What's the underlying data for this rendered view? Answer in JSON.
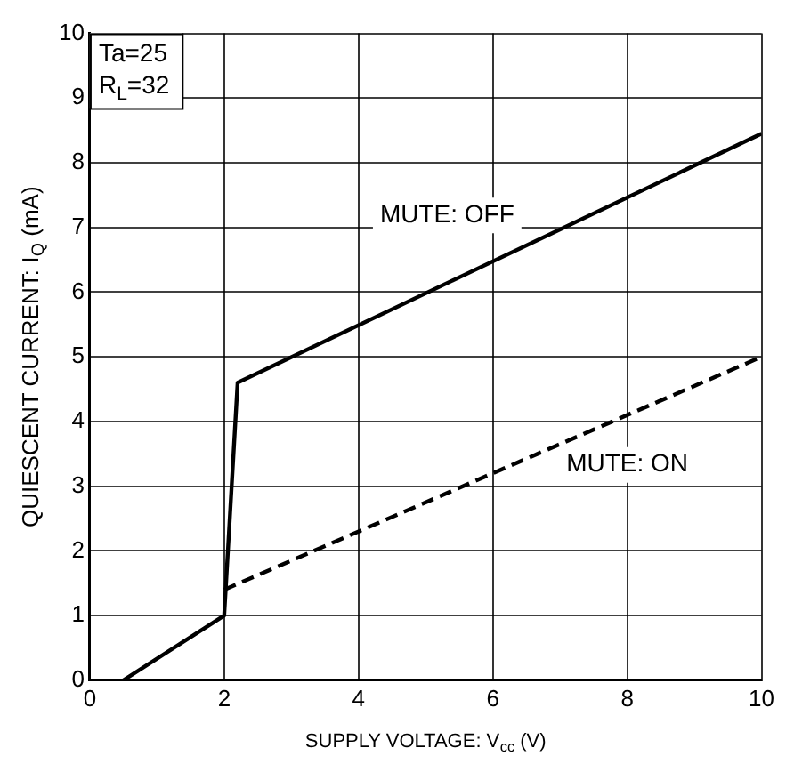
{
  "chart_data": {
    "type": "line",
    "xlabel": "SUPPLY VOLTAGE: V$_{cc}$ (V)",
    "ylabel": "QUIESCENT CURRENT: I$_{Q}$ (mA)",
    "series": [
      {
        "name": "MUTE: OFF",
        "color": "#000000",
        "line_style": "solid",
        "x": [
          0.5,
          2,
          2.2,
          10
        ],
        "values": [
          0,
          1,
          4.6,
          8.45
        ]
      },
      {
        "name": "MUTE: ON",
        "color": "#000000",
        "line_style": "dashed",
        "x": [
          2,
          10
        ],
        "values": [
          1.4,
          5.0
        ]
      }
    ],
    "xlim": [
      0,
      10
    ],
    "xticks": [
      0,
      2,
      4,
      6,
      8,
      10
    ],
    "ylim": [
      0,
      10
    ],
    "yticks": [
      0,
      1,
      2,
      3,
      4,
      5,
      6,
      7,
      8,
      9,
      10
    ],
    "grid": true,
    "legend": false,
    "marker": "none",
    "annotations": [
      "Ta=25",
      "R$_{L}$=32"
    ]
  }
}
